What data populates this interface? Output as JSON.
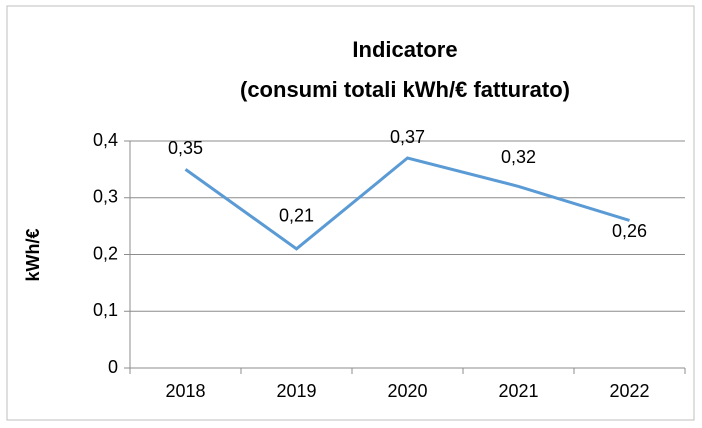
{
  "chart_data": {
    "type": "line",
    "title_lines": [
      "Indicatore",
      "(consumi totali kWh/€ fatturato)"
    ],
    "y_label": "kWh/€",
    "categories": [
      "2018",
      "2019",
      "2020",
      "2021",
      "2022"
    ],
    "series": [
      {
        "name": "Indicatore",
        "color": "#5b9bd5",
        "values": [
          0.35,
          0.21,
          0.37,
          0.32,
          0.26
        ],
        "value_labels": [
          "0,35",
          "0,21",
          "0,37",
          "0,32",
          "0,26"
        ]
      }
    ],
    "ylim": [
      0,
      0.4
    ],
    "yticks": [
      0,
      {
        "value": 0.1,
        "label": "0,1"
      },
      {
        "value": 0.2,
        "label": "0,2"
      },
      {
        "value": 0.3,
        "label": "0,3"
      },
      {
        "value": 0.4,
        "label": "0,4"
      }
    ],
    "grid": true
  }
}
